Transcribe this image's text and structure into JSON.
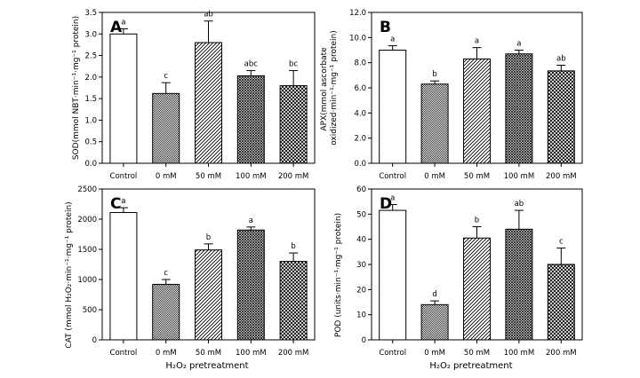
{
  "categories": [
    "Control",
    "0 mM",
    "50 mM",
    "100 mM",
    "200 mM"
  ],
  "xlabel": "H₂O₂ pretreatment",
  "chart_data": [
    {
      "type": "bar",
      "panel": "A",
      "ylabel": "SOD(mmol NBT·min⁻¹·mg⁻¹ protein)",
      "ylim": [
        0,
        3.5
      ],
      "yticks": [
        "0.0",
        "0.5",
        "1.0",
        "1.5",
        "2.0",
        "2.5",
        "3.0",
        "3.5"
      ],
      "categories": [
        "Control",
        "0 mM",
        "50 mM",
        "100 mM",
        "200 mM"
      ],
      "values": [
        3.0,
        1.62,
        2.8,
        2.03,
        1.8
      ],
      "errors": [
        0.12,
        0.25,
        0.5,
        0.12,
        0.35
      ],
      "letters": [
        "a",
        "c",
        "ab",
        "abc",
        "bc"
      ]
    },
    {
      "type": "bar",
      "panel": "B",
      "ylabel": "APX(mmol ascorbate oxidized·min⁻¹·mg⁻¹ protein)",
      "ylim": [
        0,
        12
      ],
      "yticks": [
        "0.0",
        "2.0",
        "4.0",
        "6.0",
        "8.0",
        "10.0",
        "12.0"
      ],
      "categories": [
        "Control",
        "0 mM",
        "50 mM",
        "100 mM",
        "200 mM"
      ],
      "values": [
        9.0,
        6.3,
        8.3,
        8.7,
        7.35
      ],
      "errors": [
        0.35,
        0.25,
        0.9,
        0.3,
        0.45
      ],
      "letters": [
        "a",
        "b",
        "a",
        "a",
        "ab"
      ]
    },
    {
      "type": "bar",
      "panel": "C",
      "ylabel": "CAT (mmol H₂O₂·min⁻¹·mg⁻¹ protein)",
      "ylim": [
        0,
        2500
      ],
      "yticks": [
        "0",
        "500",
        "1000",
        "1500",
        "2000",
        "2500"
      ],
      "categories": [
        "Control",
        "0 mM",
        "50 mM",
        "100 mM",
        "200 mM"
      ],
      "values": [
        2110,
        920,
        1490,
        1820,
        1300
      ],
      "errors": [
        80,
        80,
        100,
        50,
        140
      ],
      "letters": [
        "a",
        "c",
        "b",
        "a",
        "b"
      ]
    },
    {
      "type": "bar",
      "panel": "D",
      "ylabel": "POD (units·min⁻¹·mg⁻¹ protein)",
      "ylim": [
        0,
        60
      ],
      "yticks": [
        "0",
        "10",
        "20",
        "30",
        "40",
        "50",
        "60"
      ],
      "categories": [
        "Control",
        "0 mM",
        "50 mM",
        "100 mM",
        "200 mM"
      ],
      "values": [
        51.5,
        14,
        40.5,
        44,
        30
      ],
      "errors": [
        2.3,
        1.5,
        4.5,
        7.5,
        6.5
      ],
      "letters": [
        "a",
        "d",
        "b",
        "ab",
        "c"
      ]
    }
  ],
  "bar_fills": [
    "white",
    "dots",
    "diag-sparse",
    "cross-dense",
    "crosshatch"
  ]
}
